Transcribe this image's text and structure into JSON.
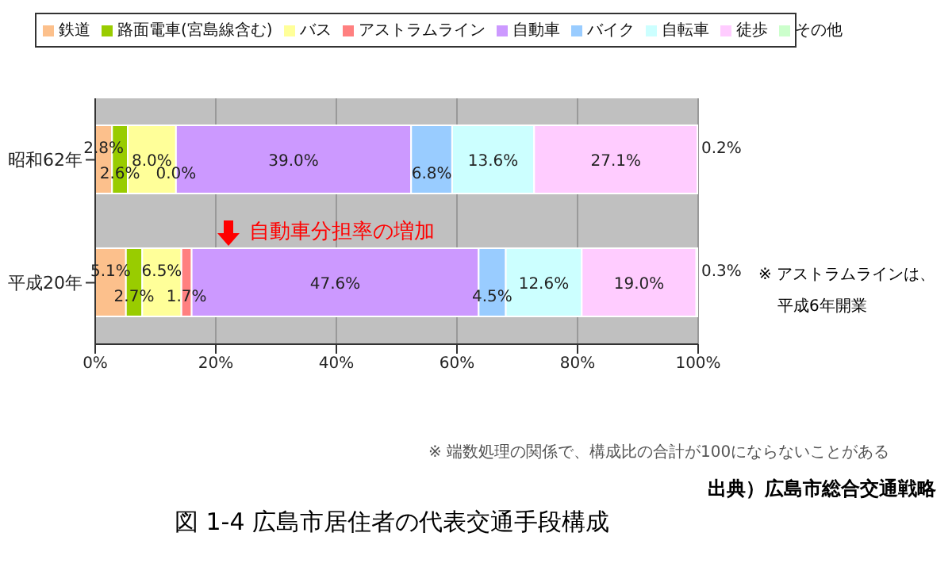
{
  "chart_data": {
    "type": "bar",
    "orientation": "horizontal",
    "stacked": true,
    "title": "図 1-4 広島市居住者の代表交通手段構成",
    "categories": [
      "昭和62年",
      "平成20年"
    ],
    "series": [
      {
        "name": "鉄道",
        "color": "#fcc08c",
        "values": [
          2.8,
          5.1
        ]
      },
      {
        "name": "路面電車(宮島線含む)",
        "color": "#99cc00",
        "values": [
          2.6,
          2.7
        ]
      },
      {
        "name": "バス",
        "color": "#ffff99",
        "values": [
          8.0,
          6.5
        ]
      },
      {
        "name": "アストラムライン",
        "color": "#ff8080",
        "values": [
          0.0,
          1.7
        ]
      },
      {
        "name": "自動車",
        "color": "#cc99ff",
        "values": [
          39.0,
          47.6
        ]
      },
      {
        "name": "バイク",
        "color": "#99ccff",
        "values": [
          6.8,
          4.5
        ]
      },
      {
        "name": "自転車",
        "color": "#ccffff",
        "values": [
          13.6,
          12.6
        ]
      },
      {
        "name": "徒歩",
        "color": "#ffccff",
        "values": [
          27.1,
          19.0
        ]
      },
      {
        "name": "その他",
        "color": "#ccffcc",
        "values": [
          0.2,
          0.3
        ]
      }
    ],
    "value_labels": [
      [
        "2.8%",
        "5.1%"
      ],
      [
        "2.6%",
        "2.7%"
      ],
      [
        "8.0%",
        "6.5%"
      ],
      [
        "0.0%",
        "1.7%"
      ],
      [
        "39.0%",
        "47.6%"
      ],
      [
        "6.8%",
        "4.5%"
      ],
      [
        "13.6%",
        "12.6%"
      ],
      [
        "27.1%",
        "19.0%"
      ],
      [
        "0.2%",
        "0.3%"
      ]
    ],
    "xlim": [
      0,
      100
    ],
    "xticks": [
      {
        "value": 0,
        "label": "0%"
      },
      {
        "value": 20,
        "label": "20%"
      },
      {
        "value": 40,
        "label": "40%"
      },
      {
        "value": 60,
        "label": "60%"
      },
      {
        "value": 80,
        "label": "80%"
      },
      {
        "value": 100,
        "label": "100%"
      }
    ],
    "grid": "x",
    "legend": "top",
    "annotations": [
      "自動車分担率の増加",
      "※ アストラムラインは、",
      "平成6年開業",
      "※ 端数処理の関係で、構成比の合計が100にならないことがある",
      "出典）広島市総合交通戦略"
    ]
  }
}
